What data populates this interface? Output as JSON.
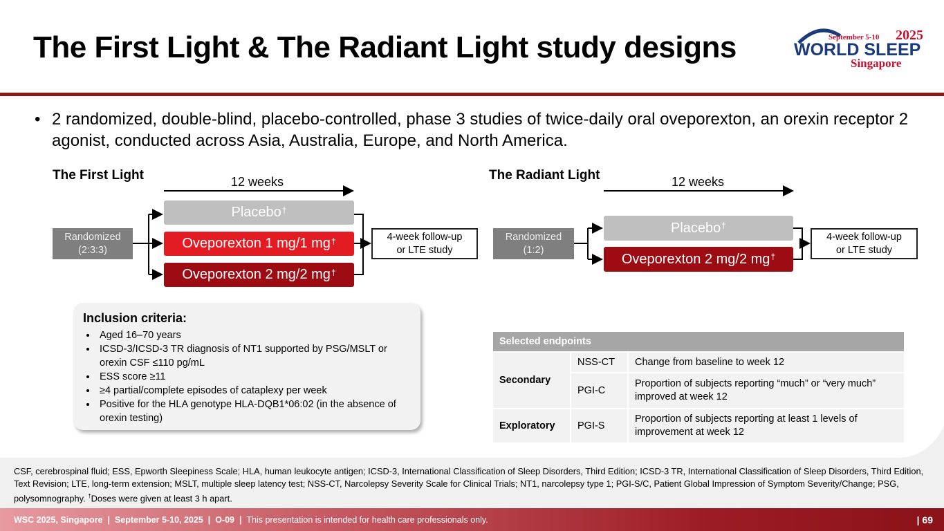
{
  "title": "The First Light & The Radiant Light study designs",
  "logo": {
    "date": "September 5-10",
    "year": "2025",
    "name": "WORLD SLEEP",
    "place": "Singapore"
  },
  "bullet": "2 randomized, double-blind, placebo-controlled, phase 3 studies of twice-daily oral oveporexton, an orexin receptor 2 agonist, conducted across Asia, Australia, Europe, and North America.",
  "studies": [
    {
      "name": "The First Light",
      "duration": "12 weeks",
      "randomized": [
        "Randomized",
        "(2:3:3)"
      ],
      "arms": [
        "Placebo",
        "Oveporexton 1 mg/1 mg",
        "Oveporexton 2 mg/2 mg"
      ],
      "dagger": "†",
      "followup": [
        "4-week follow-up",
        "or LTE study"
      ]
    },
    {
      "name": "The Radiant Light",
      "duration": "12 weeks",
      "randomized": [
        "Randomized",
        "(1:2)"
      ],
      "arms": [
        "Placebo",
        "Oveporexton 2 mg/2 mg"
      ],
      "dagger": "†",
      "followup": [
        "4-week follow-up",
        "or LTE study"
      ]
    }
  ],
  "inclusion": {
    "title": "Inclusion criteria:",
    "items": [
      "Aged 16–70 years",
      "ICSD-3/ICSD-3 TR diagnosis of NT1 supported by PSG/MSLT or orexin CSF ≤110 pg/mL",
      "ESS score ≥11",
      "≥4 partial/complete episodes of cataplexy per week",
      "Positive for the HLA genotype HLA-DQB1*06:02 (in the absence of orexin testing)"
    ]
  },
  "endpoints": {
    "header": "Selected endpoints",
    "groups": [
      {
        "type": "Secondary",
        "items": [
          {
            "code": "NSS-CT",
            "desc": "Change from baseline to week 12"
          },
          {
            "code": "PGI-C",
            "desc": "Proportion of subjects reporting “much” or “very much”  improved at week 12"
          }
        ]
      },
      {
        "type": "Exploratory",
        "items": [
          {
            "code": "PGI-S",
            "desc": "Proportion of subjects reporting at least 1 levels of improvement at week 12"
          }
        ]
      }
    ]
  },
  "footnote": {
    "text": "CSF, cerebrospinal fluid; ESS, Epworth Sleepiness Scale; HLA, human leukocyte antigen; ICSD-3, International Classification of Sleep Disorders, Third Edition; ICSD-3 TR, International Classification of Sleep Disorders, Third Edition, Text Revision; LTE, long-term extension; MSLT, multiple sleep latency test; NSS-CT, Narcolepsy Severity Scale for Clinical Trials; NT1, narcolepsy type 1; PGI-S/C, Patient Global Impression of Symptom Severity/Change; PSG, polysomnography.",
    "mark": "†",
    "note": "Doses were given at least 3 h apart."
  },
  "footer": {
    "event": "WSC 2025, Singapore",
    "dates": "September 5-10, 2025",
    "code": "O-09",
    "separator": "|",
    "notice": "This presentation is intended for health care professionals only.",
    "page": "69"
  }
}
